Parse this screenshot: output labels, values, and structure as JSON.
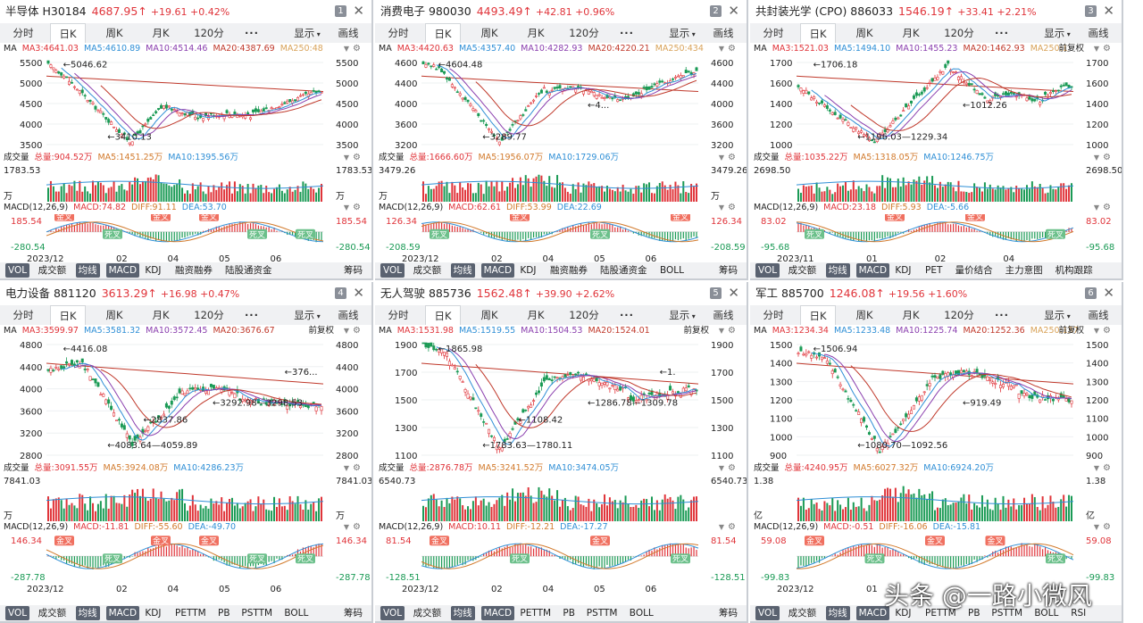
{
  "tabs": [
    "分时",
    "日K",
    "周K",
    "月K",
    "120分",
    "···",
    "显示",
    "画线"
  ],
  "watermark": "头条 @一路小微风",
  "colors": {
    "up": "#e0343a",
    "down": "#1a9a55",
    "ma3": "#e0343a",
    "ma5": "#2f8fd6",
    "ma10": "#8a3fae",
    "ma20": "#c0392b",
    "ma250": "#d9a35a",
    "tag": "#f07060",
    "tagGreen": "#6cc08b"
  },
  "panels": [
    {
      "index": "1",
      "name": "半导体 H30184",
      "price": "4687.95↑",
      "change": "+19.61 +0.42%",
      "ma_line": {
        "label": "MA",
        "items": [
          "MA3:4641.03",
          "MA5:4610.89",
          "MA10:4514.46",
          "MA20:4387.69",
          "MA250:48"
        ]
      },
      "price_axis": [
        "5500",
        "5000",
        "4500",
        "4000",
        "3500"
      ],
      "price_axis_r": [
        "5500",
        "5000",
        "4500",
        "4000",
        "3500"
      ],
      "annotations": [
        {
          "text": "5046.62"
        },
        {
          "text": "3410.13"
        }
      ],
      "vol_line": {
        "label": "成交量",
        "items": [
          "总量:904.52万",
          "MA5:1451.25万",
          "MA10:1395.56万"
        ]
      },
      "vol_axis": [
        "1783.53",
        "万"
      ],
      "macd_line": {
        "label": "MACD(12,26,9)",
        "items": [
          "MACD:74.82",
          "DIFF:91.11",
          "DEA:53.70"
        ]
      },
      "macd_axis": [
        "185.54",
        "-280.54"
      ],
      "macd_tags": [
        "金叉",
        "死叉",
        "金叉",
        "金叉",
        "死叉",
        "死叉"
      ],
      "dates": [
        "2023/12",
        "02",
        "04",
        "05",
        "06"
      ],
      "bottom": [
        "VOL",
        "成交额",
        "均线",
        "MACD",
        "KDJ",
        "融资融券",
        "陆股通资金"
      ],
      "chouma": "筹码",
      "chart_data": {
        "type": "candlestick",
        "x": [
          "2023/12",
          "02",
          "04",
          "05",
          "06"
        ],
        "high": 5046.62,
        "low": 3410.13,
        "last": 4687.95,
        "ylim": [
          3300,
          5600
        ]
      }
    },
    {
      "index": "2",
      "name": "消费电子 980030",
      "price": "4493.49↑",
      "change": "+42.81 +0.96%",
      "ma_line": {
        "label": "MA",
        "items": [
          "MA3:4420.63",
          "MA5:4357.40",
          "MA10:4282.93",
          "MA20:4220.21",
          "MA250:434"
        ]
      },
      "price_axis": [
        "4600",
        "4400",
        "4000",
        "3600",
        "3200"
      ],
      "price_axis_r": [
        "4600",
        "4400",
        "4000",
        "3600",
        "3200"
      ],
      "annotations": [
        {
          "text": "4604.48"
        },
        {
          "text": "3289.77"
        },
        {
          "text": "4..."
        }
      ],
      "vol_line": {
        "label": "成交量",
        "items": [
          "总量:1666.60万",
          "MA5:1956.07万",
          "MA10:1729.06万"
        ]
      },
      "vol_axis": [
        "3479.26",
        "万"
      ],
      "macd_line": {
        "label": "MACD(12,26,9)",
        "items": [
          "MACD:62.61",
          "DIFF:53.99",
          "DEA:22.69"
        ]
      },
      "macd_axis": [
        "126.34",
        "-208.59"
      ],
      "macd_tags": [
        "死叉",
        "金叉",
        "死叉",
        "金叉"
      ],
      "dates": [
        "2023/12",
        "02",
        "04",
        "05",
        "06"
      ],
      "bottom": [
        "VOL",
        "成交额",
        "均线",
        "MACD",
        "KDJ",
        "融资融券",
        "陆股通资金",
        "BOLL"
      ],
      "chouma": "筹码",
      "chart_data": {
        "type": "candlestick",
        "x": [
          "2023/12",
          "02",
          "04",
          "05",
          "06"
        ],
        "high": 4604.48,
        "low": 3289.77,
        "last": 4493.49,
        "ylim": [
          3150,
          4700
        ]
      }
    },
    {
      "index": "3",
      "name": "共封装光学 (CPO) 886033",
      "price": "1546.19↑",
      "change": "+33.41 +2.21%",
      "ma_line": {
        "label": "MA",
        "items": [
          "MA3:1521.03",
          "MA5:1494.10",
          "MA10:1455.23",
          "MA20:1462.93",
          "MA250:1"
        ],
        "tail": "前复权"
      },
      "price_axis": [
        "1700",
        "1600",
        "1400",
        "1200",
        "1000"
      ],
      "price_axis_r": [
        "1700",
        "1600",
        "1400",
        "1200",
        "1000"
      ],
      "annotations": [
        {
          "text": "1706.18"
        },
        {
          "text": "1196.03—1229.34"
        },
        {
          "text": "1012.26"
        }
      ],
      "vol_line": {
        "label": "成交量",
        "items": [
          "总量:1035.22万",
          "MA5:1318.05万",
          "MA10:1246.75万"
        ]
      },
      "vol_axis": [
        "2698.50"
      ],
      "macd_line": {
        "label": "MACD(12,26,9)",
        "items": [
          "MACD:23.18",
          "DIFF:5.93",
          "DEA:-5.66"
        ]
      },
      "macd_axis": [
        "83.02",
        "-95.68"
      ],
      "macd_tags": [
        "死叉",
        "金叉",
        "金叉",
        "死叉"
      ],
      "dates": [
        "2023/11",
        "01",
        "02",
        "04"
      ],
      "bottom": [
        "VOL",
        "成交额",
        "均线",
        "MACD",
        "KDJ",
        "PET",
        "量价结合",
        "主力意图",
        "机构跟踪"
      ],
      "chouma": "",
      "chart_data": {
        "type": "candlestick",
        "x": [
          "2023/11",
          "01",
          "02",
          "04"
        ],
        "high": 1706.18,
        "low": 1012.26,
        "last": 1546.19,
        "ylim": [
          980,
          1760
        ]
      }
    },
    {
      "index": "4",
      "name": "电力设备 881120",
      "price": "3613.29↑",
      "change": "+16.98 +0.47%",
      "ma_line": {
        "label": "MA",
        "items": [
          "MA3:3599.97",
          "MA5:3581.32",
          "MA10:3572.45",
          "MA20:3676.67"
        ],
        "tail": "前复权"
      },
      "price_axis": [
        "4800",
        "4400",
        "4000",
        "3600",
        "3200",
        "2800"
      ],
      "price_axis_r": [
        "4800",
        "4400",
        "4000",
        "3600",
        "3200",
        "2800"
      ],
      "annotations": [
        {
          "text": "4416.08"
        },
        {
          "text": "4083.64—4059.89"
        },
        {
          "text": "3292.98—3298.53"
        },
        {
          "text": "2837.86"
        },
        {
          "text": "376..."
        }
      ],
      "vol_line": {
        "label": "成交量",
        "items": [
          "总量:3091.55万",
          "MA5:3924.08万",
          "MA10:4286.23万"
        ]
      },
      "vol_axis": [
        "7841.03",
        "万"
      ],
      "macd_line": {
        "label": "MACD(12,26,9)",
        "items": [
          "MACD:-11.81",
          "DIFF:-55.60",
          "DEA:-49.70"
        ]
      },
      "macd_axis": [
        "146.34",
        "-287.78"
      ],
      "macd_tags": [
        "金叉",
        "死叉",
        "金叉",
        "金叉",
        "死叉",
        "死叉"
      ],
      "dates": [
        "2023/12",
        "02",
        "04",
        "05",
        "06"
      ],
      "bottom": [
        "VOL",
        "成交额",
        "均线",
        "MACD",
        "KDJ",
        "PETTM",
        "PB",
        "PSTTM",
        "BOLL"
      ],
      "chouma": "筹码",
      "chart_data": {
        "type": "candlestick",
        "x": [
          "2023/12",
          "02",
          "04",
          "05",
          "06"
        ],
        "high": 4416.08,
        "low": 2837.86,
        "last": 3613.29,
        "ylim": [
          2750,
          4850
        ]
      }
    },
    {
      "index": "5",
      "name": "无人驾驶 885736",
      "price": "1562.48↑",
      "change": "+39.90 +2.62%",
      "ma_line": {
        "label": "MA",
        "items": [
          "MA3:1531.98",
          "MA5:1519.55",
          "MA10:1504.53",
          "MA20:1524.01"
        ],
        "tail": "前复权"
      },
      "price_axis": [
        "1900",
        "1700",
        "1500",
        "1300",
        "1100"
      ],
      "price_axis_r": [
        "1900",
        "1700",
        "1500",
        "1300",
        "1100"
      ],
      "annotations": [
        {
          "text": "1865.98"
        },
        {
          "text": "1783.63—1780.11"
        },
        {
          "text": "1286.78—1309.78"
        },
        {
          "text": "1108.42"
        },
        {
          "text": "1."
        }
      ],
      "vol_line": {
        "label": "成交量",
        "items": [
          "总量:2876.78万",
          "MA5:3241.52万",
          "MA10:3474.05万"
        ]
      },
      "vol_axis": [
        "6540.73"
      ],
      "macd_line": {
        "label": "MACD(12,26,9)",
        "items": [
          "MACD:10.11",
          "DIFF:-12.21",
          "DEA:-17.27"
        ]
      },
      "macd_axis": [
        "81.54",
        "-128.51"
      ],
      "macd_tags": [
        "金叉",
        "死叉",
        "金叉",
        "死叉"
      ],
      "dates": [
        "2023/12",
        "02",
        "04",
        "05",
        "06"
      ],
      "bottom": [
        "VOL",
        "成交额",
        "均线",
        "MACD",
        "PETTM",
        "PB",
        "PSTTM",
        "BOLL"
      ],
      "chouma": "筹码",
      "chart_data": {
        "type": "candlestick",
        "x": [
          "2023/12",
          "02",
          "04",
          "05",
          "06"
        ],
        "high": 1865.98,
        "low": 1108.42,
        "last": 1562.48,
        "ylim": [
          1080,
          1920
        ]
      }
    },
    {
      "index": "6",
      "name": "军工 885700",
      "price": "1246.08↑",
      "change": "+19.56 +1.60%",
      "ma_line": {
        "label": "MA",
        "items": [
          "MA3:1234.34",
          "MA5:1233.48",
          "MA10:1225.74",
          "MA20:1252.36",
          "MA250:137"
        ],
        "tail": "前复权"
      },
      "price_axis": [
        "1500",
        "1400",
        "1300",
        "1200",
        "1100",
        "1000",
        "900"
      ],
      "price_axis_r": [
        "1500",
        "1400",
        "1300",
        "1200",
        "1100",
        "1000",
        "900"
      ],
      "annotations": [
        {
          "text": "1506.94"
        },
        {
          "text": "1080.70—1092.56"
        },
        {
          "text": "919.49"
        }
      ],
      "vol_line": {
        "label": "成交量",
        "items": [
          "总量:4240.95万",
          "MA5:6027.32万",
          "MA10:6924.20万"
        ]
      },
      "vol_axis": [
        "1.38",
        "亿"
      ],
      "macd_line": {
        "label": "MACD(12,26,9)",
        "items": [
          "MACD:-0.51",
          "DIFF:-16.06",
          "DEA:-15.81"
        ]
      },
      "macd_axis": [
        "59.08",
        "-99.83"
      ],
      "macd_tags": [
        "金叉",
        "死叉",
        "金叉",
        "金叉",
        "死叉"
      ],
      "dates": [
        "2023/12",
        "01"
      ],
      "bottom": [
        "VOL",
        "成交额",
        "均线",
        "MACD",
        "KDJ",
        "PETTM",
        "PB",
        "PSTTM",
        "BOLL",
        "RSI"
      ],
      "chouma": "",
      "chart_data": {
        "type": "candlestick",
        "x": [
          "2023/12",
          "01"
        ],
        "high": 1506.94,
        "low": 919.49,
        "last": 1246.08,
        "ylim": [
          890,
          1530
        ]
      }
    }
  ]
}
